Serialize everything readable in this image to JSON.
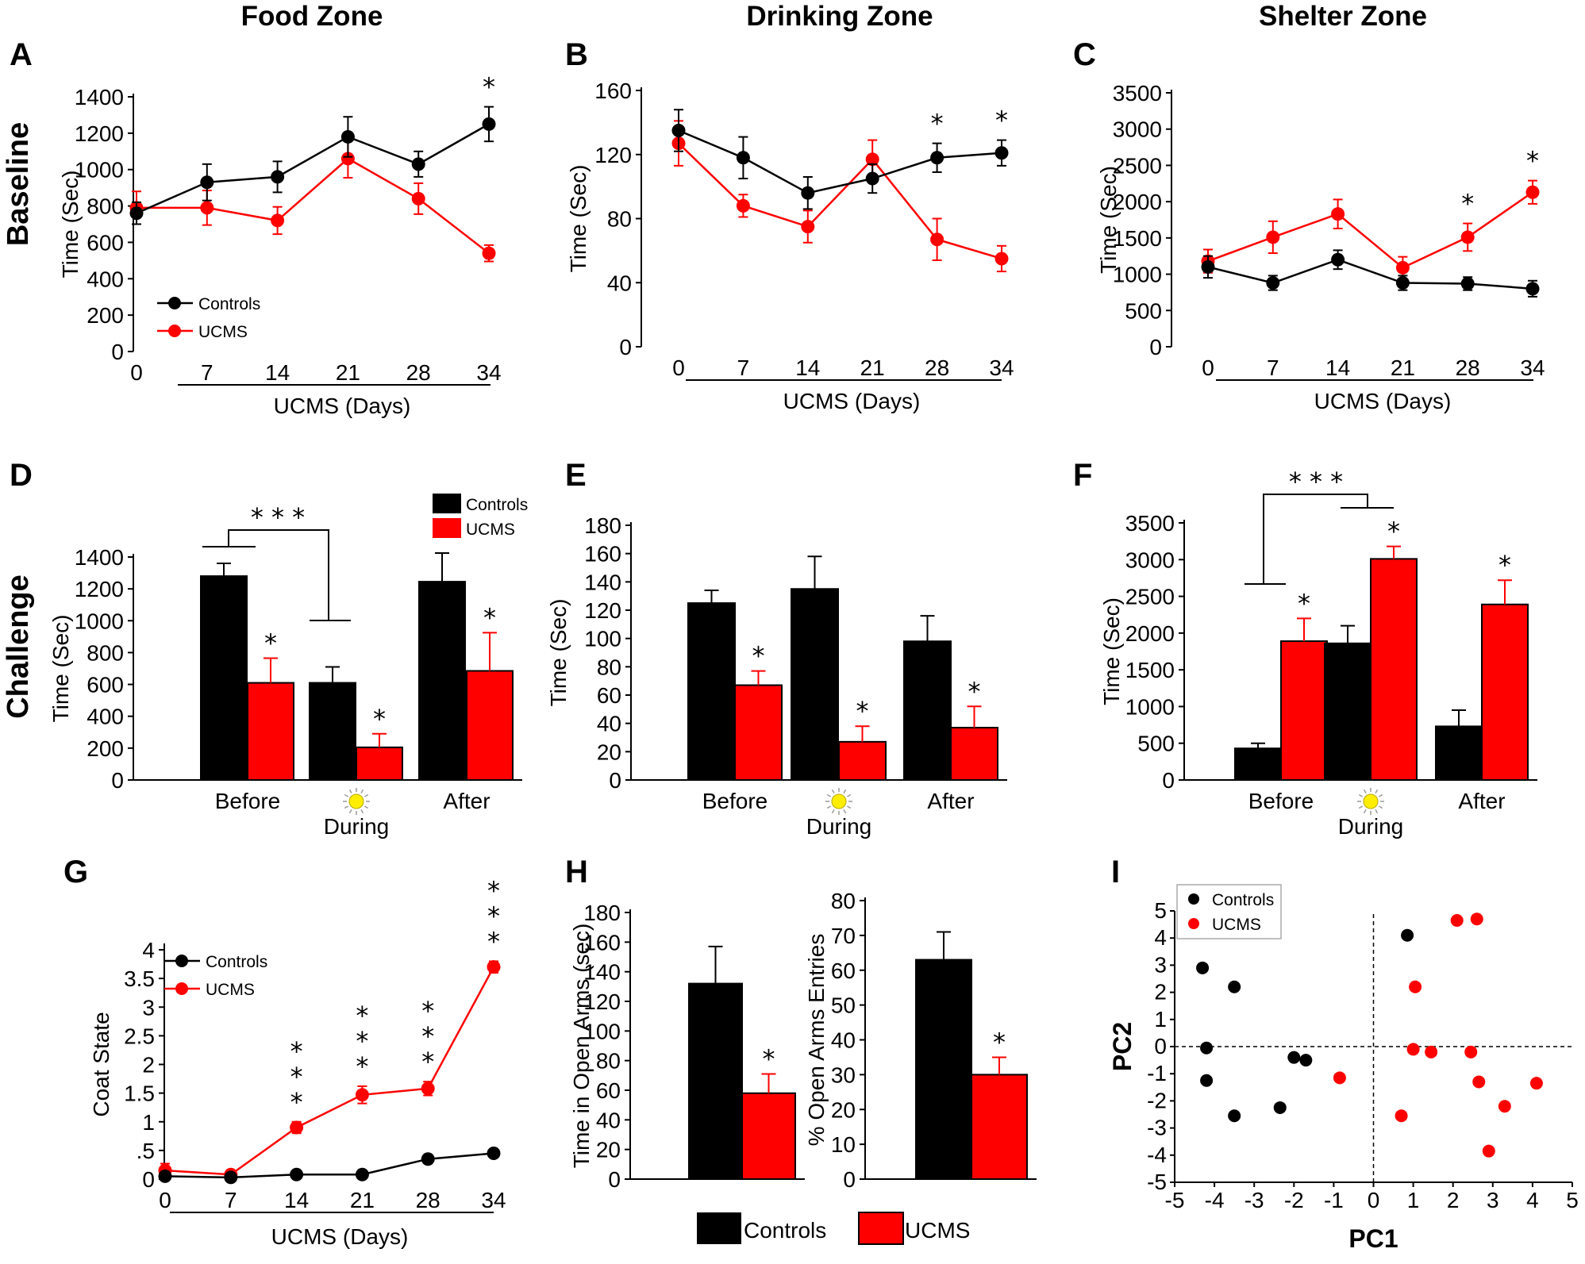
{
  "headers": {
    "col1": "Food Zone",
    "col2": "Drinking Zone",
    "col3": "Shelter Zone"
  },
  "rows": {
    "baseline": "Baseline",
    "challenge": "Challenge"
  },
  "colors": {
    "controls": "#000000",
    "ucms": "#ff0000"
  },
  "legend": {
    "controls": "Controls",
    "ucms": "UCMS"
  },
  "chart_data": [
    {
      "id": "A",
      "type": "line",
      "ylabel": "Time (Sec)",
      "xlabel": "UCMS (Days)",
      "categories": [
        "0",
        "7",
        "14",
        "21",
        "28",
        "34"
      ],
      "ylim": [
        0,
        1400
      ],
      "yticks": [
        "0",
        "200",
        "400",
        "600",
        "800",
        "1000",
        "1200",
        "1400"
      ],
      "series": [
        {
          "name": "Controls",
          "values": [
            760,
            930,
            960,
            1180,
            1030,
            1250
          ],
          "err": [
            60,
            100,
            85,
            110,
            70,
            95
          ]
        },
        {
          "name": "UCMS",
          "values": [
            790,
            790,
            720,
            1060,
            840,
            540
          ],
          "err": [
            90,
            95,
            75,
            105,
            85,
            45
          ]
        }
      ],
      "stars": [
        {
          "index": 5,
          "text": "*"
        }
      ],
      "legend": "lower-left"
    },
    {
      "id": "B",
      "type": "line",
      "ylabel": "Time (Sec)",
      "xlabel": "UCMS (Days)",
      "categories": [
        "0",
        "7",
        "14",
        "21",
        "28",
        "34"
      ],
      "ylim": [
        0,
        160
      ],
      "yticks": [
        "0",
        "40",
        "80",
        "120",
        "160"
      ],
      "series": [
        {
          "name": "Controls",
          "values": [
            135,
            118,
            96,
            105,
            118,
            121
          ],
          "err": [
            13,
            13,
            10,
            9,
            9,
            8
          ]
        },
        {
          "name": "UCMS",
          "values": [
            127,
            88,
            75,
            117,
            67,
            55
          ],
          "err": [
            14,
            7,
            10,
            12,
            13,
            8
          ]
        }
      ],
      "stars": [
        {
          "index": 4,
          "text": "*"
        },
        {
          "index": 5,
          "text": "*"
        }
      ]
    },
    {
      "id": "C",
      "type": "line",
      "ylabel": "Time (Sec)",
      "xlabel": "UCMS (Days)",
      "categories": [
        "0",
        "7",
        "14",
        "21",
        "28",
        "34"
      ],
      "ylim": [
        0,
        3500
      ],
      "yticks": [
        "0",
        "500",
        "1000",
        "1500",
        "2000",
        "2500",
        "3000",
        "3500"
      ],
      "series": [
        {
          "name": "Controls",
          "values": [
            1100,
            880,
            1200,
            880,
            870,
            800
          ],
          "err": [
            150,
            100,
            130,
            100,
            90,
            110
          ]
        },
        {
          "name": "UCMS",
          "values": [
            1180,
            1510,
            1830,
            1090,
            1510,
            2130
          ],
          "err": [
            160,
            220,
            200,
            150,
            190,
            160
          ]
        }
      ],
      "stars": [
        {
          "index": 4,
          "text": "*"
        },
        {
          "index": 5,
          "text": "*"
        }
      ]
    },
    {
      "id": "D",
      "type": "bar",
      "ylabel": "Time (Sec)",
      "categories": [
        "Before",
        "During",
        "After"
      ],
      "ylim": [
        0,
        1400
      ],
      "yticks": [
        "0",
        "200",
        "400",
        "600",
        "800",
        "1000",
        "1200",
        "1400"
      ],
      "series": [
        {
          "name": "Controls",
          "values": [
            1280,
            610,
            1245
          ],
          "err": [
            80,
            100,
            180
          ]
        },
        {
          "name": "UCMS",
          "values": [
            610,
            205,
            685
          ],
          "err": [
            155,
            85,
            240
          ]
        }
      ],
      "stars_ucms": [
        "*",
        "*",
        "*"
      ],
      "bracket": "* * *",
      "legend": "top-right"
    },
    {
      "id": "E",
      "type": "bar",
      "ylabel": "Time (Sec)",
      "categories": [
        "Before",
        "During",
        "After"
      ],
      "ylim": [
        0,
        180
      ],
      "yticks": [
        "0",
        "20",
        "40",
        "60",
        "80",
        "100",
        "120",
        "140",
        "160",
        "180"
      ],
      "series": [
        {
          "name": "Controls",
          "values": [
            125,
            135,
            98
          ],
          "err": [
            9,
            23,
            18
          ]
        },
        {
          "name": "UCMS",
          "values": [
            67,
            27,
            37
          ],
          "err": [
            10,
            11,
            15
          ]
        }
      ],
      "stars_ucms": [
        "*",
        "*",
        "*"
      ]
    },
    {
      "id": "F",
      "type": "bar",
      "ylabel": "Time (Sec)",
      "categories": [
        "Before",
        "During",
        "After"
      ],
      "ylim": [
        0,
        3500
      ],
      "yticks": [
        "0",
        "500",
        "1000",
        "1500",
        "2000",
        "2500",
        "3000",
        "3500"
      ],
      "series": [
        {
          "name": "Controls",
          "values": [
            430,
            1860,
            730
          ],
          "err": [
            70,
            240,
            220
          ]
        },
        {
          "name": "UCMS",
          "values": [
            1890,
            3010,
            2390
          ],
          "err": [
            310,
            170,
            330
          ]
        }
      ],
      "stars_ucms": [
        "*",
        "*",
        "*"
      ],
      "bracket": "* * *"
    },
    {
      "id": "G",
      "type": "line",
      "ylabel": "Coat State",
      "xlabel": "UCMS (Days)",
      "categories": [
        "0",
        "7",
        "14",
        "21",
        "28",
        "34"
      ],
      "ylim": [
        0,
        4
      ],
      "yticks": [
        "0",
        ".5",
        "1",
        "1.5",
        "2",
        "2.5",
        "3",
        "3.5",
        "4"
      ],
      "series": [
        {
          "name": "Controls",
          "values": [
            0.05,
            0.03,
            0.08,
            0.08,
            0.35,
            0.45
          ],
          "err": [
            0.04,
            0.03,
            0.04,
            0.04,
            0.05,
            0.06
          ]
        },
        {
          "name": "UCMS",
          "values": [
            0.15,
            0.08,
            0.9,
            1.47,
            1.58,
            3.7
          ],
          "err": [
            0.12,
            0.05,
            0.1,
            0.15,
            0.12,
            0.1
          ]
        }
      ],
      "stars": [
        {
          "index": 2,
          "text": "***"
        },
        {
          "index": 3,
          "text": "***"
        },
        {
          "index": 4,
          "text": "***"
        },
        {
          "index": 5,
          "text": "***"
        }
      ],
      "legend": "top-left"
    },
    {
      "id": "H1",
      "type": "bar",
      "ylabel": "Time in Open Arms (sec)",
      "ylim": [
        0,
        180
      ],
      "yticks": [
        "0",
        "20",
        "40",
        "60",
        "80",
        "100",
        "120",
        "140",
        "160",
        "180"
      ],
      "series": [
        {
          "name": "Controls",
          "values": [
            132
          ],
          "err": [
            25
          ]
        },
        {
          "name": "UCMS",
          "values": [
            58
          ],
          "err": [
            13
          ]
        }
      ],
      "stars_ucms": [
        "*"
      ]
    },
    {
      "id": "H2",
      "type": "bar",
      "ylabel": "% Open Arms Entries",
      "ylim": [
        0,
        80
      ],
      "yticks": [
        "0",
        "10",
        "20",
        "30",
        "40",
        "50",
        "60",
        "70",
        "80"
      ],
      "series": [
        {
          "name": "Controls",
          "values": [
            63
          ],
          "err": [
            8
          ]
        },
        {
          "name": "UCMS",
          "values": [
            30
          ],
          "err": [
            5
          ]
        }
      ],
      "stars_ucms": [
        "*"
      ]
    },
    {
      "id": "I",
      "type": "scatter",
      "xlabel": "PC1",
      "ylabel": "PC2",
      "xlim": [
        -5,
        5
      ],
      "ylim": [
        -5,
        5
      ],
      "xticks": [
        "-5",
        "-4",
        "-3",
        "-2",
        "-1",
        "0",
        "1",
        "2",
        "3",
        "4",
        "5"
      ],
      "yticks": [
        "-5",
        "-4",
        "-3",
        "-2",
        "-1",
        "0",
        "1",
        "2",
        "3",
        "4",
        "5"
      ],
      "series": [
        {
          "name": "Controls",
          "points": [
            [
              -4.3,
              2.9
            ],
            [
              -3.5,
              2.2
            ],
            [
              -4.2,
              -0.05
            ],
            [
              -4.2,
              -1.25
            ],
            [
              -3.5,
              -2.55
            ],
            [
              -2.35,
              -2.25
            ],
            [
              -2.0,
              -0.4
            ],
            [
              -1.7,
              -0.5
            ],
            [
              0.85,
              4.1
            ]
          ]
        },
        {
          "name": "UCMS",
          "points": [
            [
              2.1,
              4.65
            ],
            [
              2.6,
              4.7
            ],
            [
              1.05,
              2.2
            ],
            [
              -0.85,
              -1.15
            ],
            [
              1.0,
              -0.1
            ],
            [
              1.45,
              -0.2
            ],
            [
              2.45,
              -0.2
            ],
            [
              2.65,
              -1.3
            ],
            [
              4.1,
              -1.35
            ],
            [
              3.3,
              -2.2
            ],
            [
              0.7,
              -2.55
            ],
            [
              2.9,
              -3.85
            ]
          ]
        }
      ],
      "legend": "top-left"
    }
  ]
}
